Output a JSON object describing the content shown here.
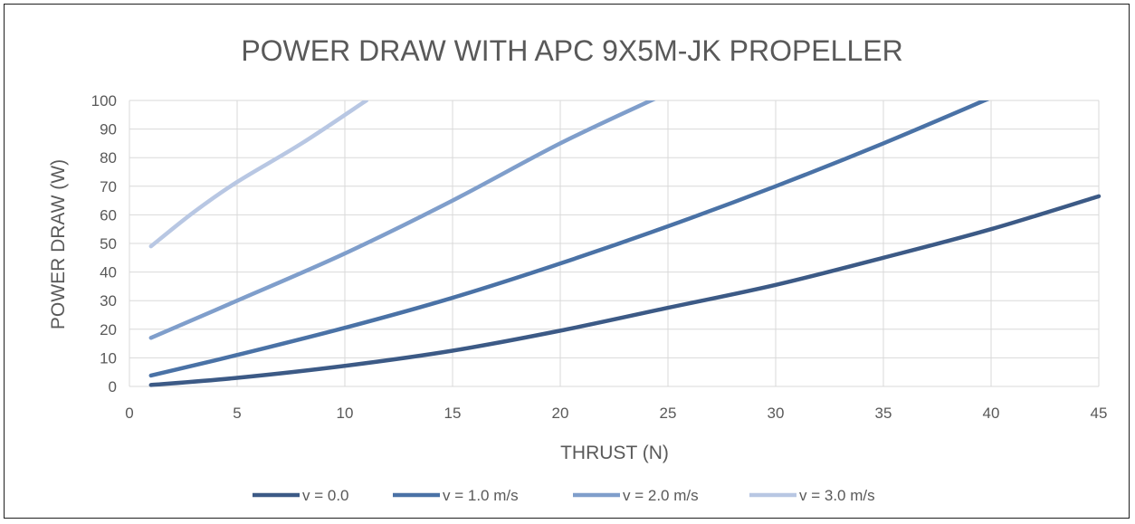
{
  "chart_data": {
    "type": "line",
    "title": "POWER DRAW WITH APC 9X5M-JK PROPELLER",
    "xlabel": "THRUST (N)",
    "ylabel": "POWER DRAW (W)",
    "xlim": [
      0,
      45
    ],
    "ylim": [
      0,
      100
    ],
    "x_ticks": [
      0,
      5,
      10,
      15,
      20,
      25,
      30,
      35,
      40,
      45
    ],
    "y_ticks": [
      0,
      10,
      20,
      30,
      40,
      50,
      60,
      70,
      80,
      90,
      100
    ],
    "grid": true,
    "legend_position": "bottom",
    "series": [
      {
        "name": "v = 0.0",
        "color": "#3c5a86",
        "points": [
          [
            1,
            0.5
          ],
          [
            5,
            3
          ],
          [
            10,
            7.2
          ],
          [
            15,
            12.5
          ],
          [
            20,
            19.5
          ],
          [
            25,
            27.5
          ],
          [
            30,
            35.5
          ],
          [
            35,
            45
          ],
          [
            40,
            55
          ],
          [
            45,
            66.5
          ]
        ]
      },
      {
        "name": "v = 1.0 m/s",
        "color": "#4a72a6",
        "points": [
          [
            1,
            3.8
          ],
          [
            5,
            11
          ],
          [
            10,
            20.5
          ],
          [
            15,
            31
          ],
          [
            20,
            43
          ],
          [
            25,
            56
          ],
          [
            30,
            70
          ],
          [
            35,
            85
          ],
          [
            40,
            101
          ]
        ]
      },
      {
        "name": "v = 2.0 m/s",
        "color": "#7f9ecb",
        "points": [
          [
            1,
            17
          ],
          [
            5,
            30
          ],
          [
            10,
            46.5
          ],
          [
            15,
            65
          ],
          [
            20,
            85
          ],
          [
            24.5,
            101
          ]
        ]
      },
      {
        "name": "v = 3.0 m/s",
        "color": "#b8c7e3",
        "points": [
          [
            1,
            49
          ],
          [
            3,
            61
          ],
          [
            5,
            71.5
          ],
          [
            8,
            85
          ],
          [
            11,
            100
          ]
        ]
      }
    ]
  }
}
